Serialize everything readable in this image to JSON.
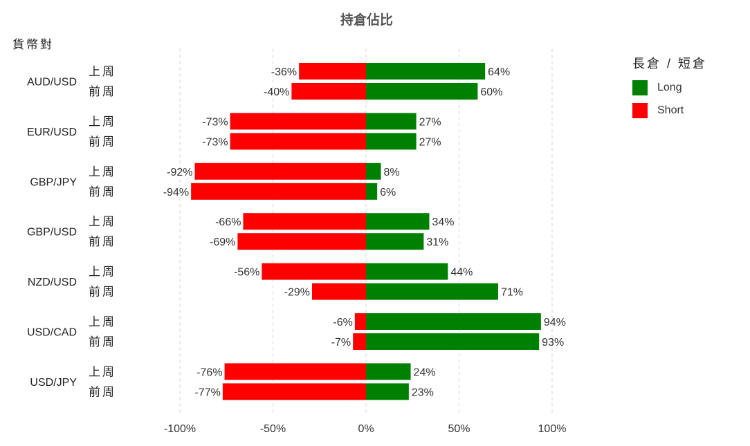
{
  "title": "持倉佔比",
  "y_title": "貨幣對",
  "legend": {
    "title": "長倉 / 短倉",
    "items": [
      {
        "label": "Long",
        "color": "#008000"
      },
      {
        "label": "Short",
        "color": "#ff0000"
      }
    ]
  },
  "chart_data": {
    "type": "bar",
    "orientation": "horizontal",
    "stacked": "diverging",
    "title": "持倉佔比",
    "ylabel": "貨幣對",
    "xlabel": "",
    "xlim": [
      -100,
      100
    ],
    "x_ticks": [
      "-100%",
      "-50%",
      "0%",
      "50%",
      "100%"
    ],
    "x_tick_values": [
      -100,
      -50,
      0,
      50,
      100
    ],
    "grid": "vertical dashed",
    "legend_position": "top-right",
    "groups": [
      {
        "pair": "AUD/USD",
        "rows": [
          {
            "period": "上周",
            "short": -36,
            "long": 64
          },
          {
            "period": "前周",
            "short": -40,
            "long": 60
          }
        ]
      },
      {
        "pair": "EUR/USD",
        "rows": [
          {
            "period": "上周",
            "short": -73,
            "long": 27
          },
          {
            "period": "前周",
            "short": -73,
            "long": 27
          }
        ]
      },
      {
        "pair": "GBP/JPY",
        "rows": [
          {
            "period": "上周",
            "short": -92,
            "long": 8
          },
          {
            "period": "前周",
            "short": -94,
            "long": 6
          }
        ]
      },
      {
        "pair": "GBP/USD",
        "rows": [
          {
            "period": "上周",
            "short": -66,
            "long": 34
          },
          {
            "period": "前周",
            "short": -69,
            "long": 31
          }
        ]
      },
      {
        "pair": "NZD/USD",
        "rows": [
          {
            "period": "上周",
            "short": -56,
            "long": 44
          },
          {
            "period": "前周",
            "short": -29,
            "long": 71
          }
        ]
      },
      {
        "pair": "USD/CAD",
        "rows": [
          {
            "period": "上周",
            "short": -6,
            "long": 94
          },
          {
            "period": "前周",
            "short": -7,
            "long": 93
          }
        ]
      },
      {
        "pair": "USD/JPY",
        "rows": [
          {
            "period": "上周",
            "short": -76,
            "long": 24
          },
          {
            "period": "前周",
            "short": -77,
            "long": 23
          }
        ]
      }
    ]
  }
}
